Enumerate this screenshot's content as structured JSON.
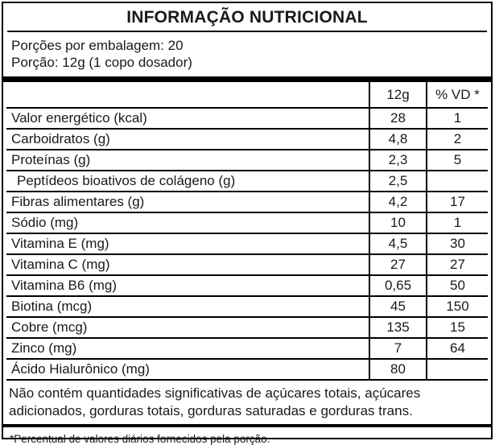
{
  "title": "INFORMAÇÃO NUTRICIONAL",
  "servings": {
    "per_package": "Porções por embalagem: 20",
    "portion": "Porção: 12g (1 copo dosador)"
  },
  "table": {
    "col_amount": "12g",
    "col_vd": "% VD *",
    "rows": [
      {
        "label": "Valor energético (kcal)",
        "amount": "28",
        "vd": "1",
        "indent": false
      },
      {
        "label": "Carboidratos (g)",
        "amount": "4,8",
        "vd": "2",
        "indent": false
      },
      {
        "label": "Proteínas (g)",
        "amount": "2,3",
        "vd": "5",
        "indent": false
      },
      {
        "label": "Peptídeos bioativos de colágeno (g)",
        "amount": "2,5",
        "vd": "",
        "indent": true
      },
      {
        "label": "Fibras alimentares (g)",
        "amount": "4,2",
        "vd": "17",
        "indent": false
      },
      {
        "label": "Sódio (mg)",
        "amount": "10",
        "vd": "1",
        "indent": false
      },
      {
        "label": "Vitamina E (mg)",
        "amount": "4,5",
        "vd": "30",
        "indent": false
      },
      {
        "label": "Vitamina C (mg)",
        "amount": "27",
        "vd": "27",
        "indent": false
      },
      {
        "label": "Vitamina B6 (mg)",
        "amount": "0,65",
        "vd": "50",
        "indent": false
      },
      {
        "label": "Biotina (mcg)",
        "amount": "45",
        "vd": "150",
        "indent": false
      },
      {
        "label": "Cobre (mcg)",
        "amount": "135",
        "vd": "15",
        "indent": false
      },
      {
        "label": "Zinco (mg)",
        "amount": "7",
        "vd": "64",
        "indent": false
      },
      {
        "label": "Ácido Hialurônico (mg)",
        "amount": "80",
        "vd": "",
        "indent": false
      }
    ]
  },
  "note": "Não contém quantidades significativas de açúcares totais, açúcares adicionados, gorduras totais, gorduras saturadas e gorduras trans.",
  "footnote": "*Percentual de valores diários fornecidos pela porção.",
  "colors": {
    "border": "#000000",
    "text": "#1a1a1a",
    "background": "#ffffff"
  }
}
